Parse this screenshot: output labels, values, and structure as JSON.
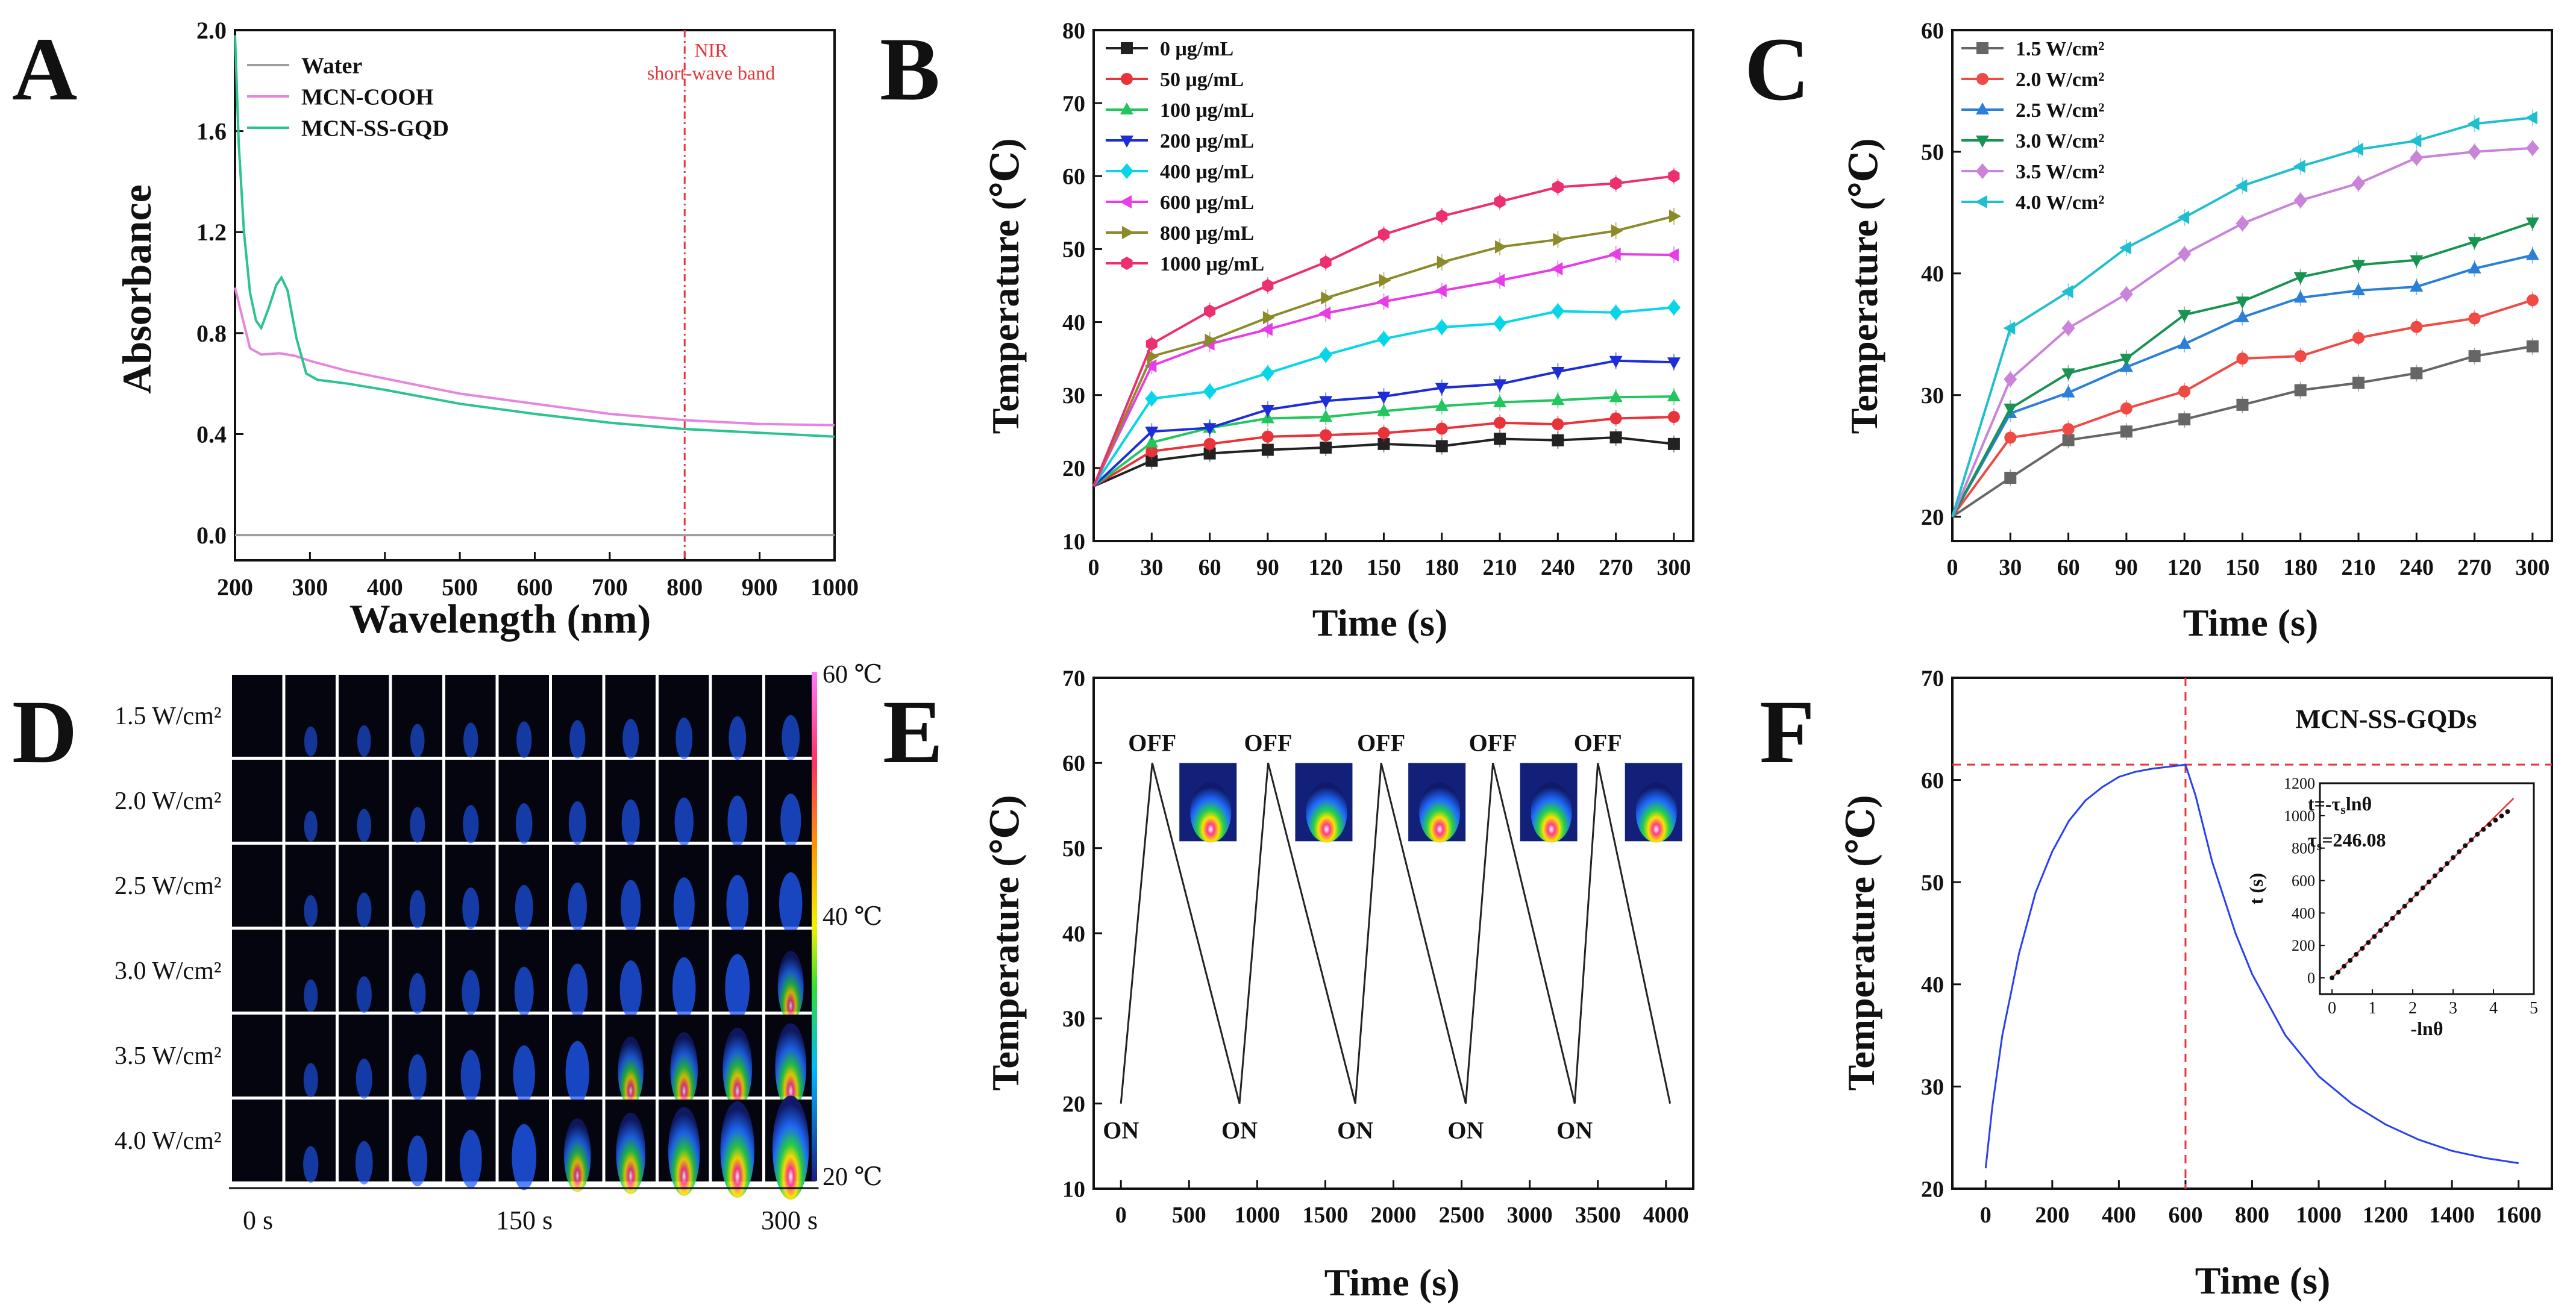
{
  "chart_data": [
    {
      "panel": "A",
      "type": "line",
      "xlabel": "Wavelength (nm)",
      "ylabel": "Absorbance",
      "xlim": [
        200,
        1000
      ],
      "ylim": [
        -0.1,
        2.0
      ],
      "xticks": [
        200,
        300,
        400,
        500,
        600,
        700,
        800,
        900,
        1000
      ],
      "yticks": [
        "0.0",
        "0.4",
        "0.8",
        "1.2",
        "1.6",
        "2.0"
      ],
      "legend_position": "top-left",
      "annotation": {
        "x": 800,
        "line1": "NIR",
        "line2": "short-wave band",
        "color": "#e8333a"
      },
      "series": [
        {
          "name": "Water",
          "color": "#9e9e9e",
          "points": [
            [
              200,
              0.0
            ],
            [
              1000,
              0.0
            ]
          ]
        },
        {
          "name": "MCN-COOH",
          "color": "#e685e0",
          "points": [
            [
              200,
              0.98
            ],
            [
              210,
              0.86
            ],
            [
              220,
              0.74
            ],
            [
              235,
              0.715
            ],
            [
              260,
              0.72
            ],
            [
              280,
              0.71
            ],
            [
              300,
              0.69
            ],
            [
              350,
              0.65
            ],
            [
              400,
              0.62
            ],
            [
              500,
              0.56
            ],
            [
              600,
              0.52
            ],
            [
              700,
              0.48
            ],
            [
              800,
              0.455
            ],
            [
              900,
              0.44
            ],
            [
              1000,
              0.435
            ]
          ]
        },
        {
          "name": "MCN-SS-GQD",
          "color": "#2bc38f",
          "points": [
            [
              200,
              1.98
            ],
            [
              205,
              1.55
            ],
            [
              212,
              1.2
            ],
            [
              220,
              0.96
            ],
            [
              228,
              0.85
            ],
            [
              235,
              0.82
            ],
            [
              245,
              0.9
            ],
            [
              255,
              0.99
            ],
            [
              262,
              1.02
            ],
            [
              270,
              0.97
            ],
            [
              282,
              0.78
            ],
            [
              295,
              0.64
            ],
            [
              310,
              0.615
            ],
            [
              350,
              0.6
            ],
            [
              400,
              0.575
            ],
            [
              500,
              0.52
            ],
            [
              600,
              0.48
            ],
            [
              700,
              0.445
            ],
            [
              800,
              0.42
            ],
            [
              900,
              0.405
            ],
            [
              1000,
              0.39
            ]
          ]
        }
      ]
    },
    {
      "panel": "B",
      "type": "line",
      "xlabel": "Time (s)",
      "ylabel": "Temperature (℃)",
      "xlim": [
        0,
        310
      ],
      "ylim": [
        10,
        80
      ],
      "xticks": [
        0,
        30,
        60,
        90,
        120,
        150,
        180,
        210,
        240,
        270,
        300
      ],
      "yticks": [
        10,
        20,
        30,
        40,
        50,
        60,
        70,
        80
      ],
      "legend_position": "top-left",
      "x": [
        0,
        30,
        60,
        90,
        120,
        150,
        180,
        210,
        240,
        270,
        300
      ],
      "series": [
        {
          "name": "0 μg/mL",
          "color": "#222222",
          "marker": "square",
          "values": [
            17.5,
            21.0,
            22.0,
            22.5,
            22.8,
            23.3,
            23.0,
            24.0,
            23.8,
            24.2,
            23.3
          ]
        },
        {
          "name": "50 μg/mL",
          "color": "#e8333a",
          "marker": "circle",
          "values": [
            17.5,
            22.3,
            23.3,
            24.3,
            24.5,
            24.8,
            25.4,
            26.2,
            26.0,
            26.8,
            27.0
          ]
        },
        {
          "name": "100 μg/mL",
          "color": "#22c55e",
          "marker": "triangle-up",
          "values": [
            17.5,
            23.5,
            25.5,
            26.8,
            27.0,
            27.8,
            28.5,
            29.0,
            29.3,
            29.7,
            29.8
          ]
        },
        {
          "name": "200 μg/mL",
          "color": "#1d2ed8",
          "marker": "triangle-down",
          "values": [
            17.5,
            25.0,
            25.5,
            28.0,
            29.2,
            29.8,
            31.0,
            31.5,
            33.2,
            34.7,
            34.5
          ]
        },
        {
          "name": "400 μg/mL",
          "color": "#06d6e8",
          "marker": "diamond",
          "values": [
            17.5,
            29.5,
            30.5,
            33.0,
            35.5,
            37.7,
            39.3,
            39.8,
            41.5,
            41.3,
            42.0
          ]
        },
        {
          "name": "600 μg/mL",
          "color": "#e63de6",
          "marker": "triangle-left",
          "values": [
            17.5,
            34.0,
            37.0,
            39.0,
            41.2,
            42.8,
            44.3,
            45.7,
            47.3,
            49.3,
            49.2
          ]
        },
        {
          "name": "800 μg/mL",
          "color": "#8c8a2a",
          "marker": "triangle-right",
          "values": [
            17.5,
            35.3,
            37.5,
            40.6,
            43.3,
            45.7,
            48.2,
            50.3,
            51.3,
            52.5,
            54.5
          ]
        },
        {
          "name": "1000 μg/mL",
          "color": "#ec2f6e",
          "marker": "hexagon",
          "values": [
            17.5,
            37.0,
            41.5,
            45.0,
            48.2,
            52.0,
            54.5,
            56.5,
            58.5,
            59.0,
            60.0
          ]
        }
      ]
    },
    {
      "panel": "C",
      "type": "line",
      "xlabel": "Time (s)",
      "ylabel": "Temperature (℃)",
      "xlim": [
        0,
        310
      ],
      "ylim": [
        18,
        60
      ],
      "xticks": [
        0,
        30,
        60,
        90,
        120,
        150,
        180,
        210,
        240,
        270,
        300
      ],
      "yticks": [
        20,
        30,
        40,
        50,
        60
      ],
      "legend_position": "top-left",
      "x": [
        0,
        30,
        60,
        90,
        120,
        150,
        180,
        210,
        240,
        270,
        300
      ],
      "series": [
        {
          "name": "1.5 W/cm²",
          "color": "#666666",
          "marker": "square",
          "values": [
            20.0,
            23.2,
            26.3,
            27.0,
            28.0,
            29.2,
            30.4,
            31.0,
            31.8,
            33.2,
            34.0
          ]
        },
        {
          "name": "2.0 W/cm²",
          "color": "#ef4a44",
          "marker": "circle",
          "values": [
            20.0,
            26.5,
            27.2,
            28.9,
            30.3,
            33.0,
            33.2,
            34.7,
            35.6,
            36.3,
            37.8
          ]
        },
        {
          "name": "2.5 W/cm²",
          "color": "#2a7fd6",
          "marker": "triangle-up",
          "values": [
            20.0,
            28.5,
            30.2,
            32.3,
            34.2,
            36.4,
            38.0,
            38.6,
            38.9,
            40.4,
            41.5
          ]
        },
        {
          "name": "3.0 W/cm²",
          "color": "#199352",
          "marker": "triangle-down",
          "values": [
            20.0,
            28.9,
            31.8,
            33.0,
            36.6,
            37.7,
            39.7,
            40.7,
            41.1,
            42.6,
            44.2
          ]
        },
        {
          "name": "3.5 W/cm²",
          "color": "#c983d8",
          "marker": "diamond",
          "values": [
            20.0,
            31.3,
            35.5,
            38.3,
            41.6,
            44.1,
            46.0,
            47.4,
            49.5,
            50.0,
            50.3
          ]
        },
        {
          "name": "4.0 W/cm²",
          "color": "#20bfcf",
          "marker": "triangle-left",
          "values": [
            20.0,
            35.5,
            38.5,
            42.1,
            44.6,
            47.2,
            48.8,
            50.2,
            50.9,
            52.3,
            52.8
          ]
        }
      ]
    },
    {
      "panel": "D",
      "type": "heatmap",
      "rows": [
        "1.5 W/cm²",
        "2.0 W/cm²",
        "2.5 W/cm²",
        "3.0 W/cm²",
        "3.5 W/cm²",
        "4.0 W/cm²"
      ],
      "time_labels": [
        "0 s",
        "150 s",
        "300 s"
      ],
      "colorbar_labels": {
        "max": "60 ℃",
        "mid": "40 ℃",
        "min": "20 ℃"
      },
      "columns": 11,
      "relative_intensity": [
        [
          0,
          0.04,
          0.06,
          0.08,
          0.1,
          0.12,
          0.14,
          0.16,
          0.18,
          0.2,
          0.22
        ],
        [
          0,
          0.05,
          0.08,
          0.11,
          0.14,
          0.17,
          0.2,
          0.23,
          0.26,
          0.29,
          0.32
        ],
        [
          0,
          0.06,
          0.1,
          0.14,
          0.18,
          0.22,
          0.26,
          0.3,
          0.34,
          0.38,
          0.42
        ],
        [
          0,
          0.07,
          0.12,
          0.17,
          0.22,
          0.27,
          0.32,
          0.37,
          0.42,
          0.47,
          0.52
        ],
        [
          0,
          0.09,
          0.16,
          0.23,
          0.3,
          0.37,
          0.44,
          0.51,
          0.58,
          0.65,
          0.72
        ],
        [
          0,
          0.12,
          0.2,
          0.29,
          0.38,
          0.47,
          0.56,
          0.65,
          0.74,
          0.83,
          0.92
        ]
      ]
    },
    {
      "panel": "E",
      "type": "line",
      "xlabel": "Time (s)",
      "ylabel": "Temperature (℃)",
      "xlim": [
        -200,
        4200
      ],
      "ylim": [
        10,
        70
      ],
      "xticks": [
        0,
        500,
        1000,
        1500,
        2000,
        2500,
        3000,
        3500,
        4000
      ],
      "yticks": [
        10,
        20,
        30,
        40,
        50,
        60,
        70
      ],
      "on_label": "ON",
      "off_label": "OFF",
      "series": [
        {
          "name": "",
          "color": "#222222",
          "points": [
            [
              0,
              20
            ],
            [
              230,
              60
            ],
            [
              870,
              20
            ],
            [
              1080,
              60
            ],
            [
              1720,
              20
            ],
            [
              1910,
              60
            ],
            [
              2530,
              20
            ],
            [
              2730,
              60
            ],
            [
              3330,
              20
            ],
            [
              3500,
              60
            ],
            [
              4030,
              20
            ]
          ]
        }
      ],
      "on_points": [
        0,
        870,
        1720,
        2530,
        3330
      ],
      "off_points": [
        230,
        1080,
        1910,
        2730,
        3500
      ]
    },
    {
      "panel": "F",
      "type": "line",
      "title": "MCN-SS-GQDs",
      "xlabel": "Time (s)",
      "ylabel": "Temperature (℃)",
      "xlim": [
        -100,
        1700
      ],
      "ylim": [
        20,
        70
      ],
      "xticks": [
        0,
        200,
        400,
        600,
        800,
        1000,
        1200,
        1400,
        1600
      ],
      "yticks": [
        20,
        30,
        40,
        50,
        60,
        70
      ],
      "crosshair": {
        "x": 600,
        "y": 61.5,
        "color": "#e8333a"
      },
      "series": [
        {
          "name": "",
          "color": "#2a3ff0",
          "points": [
            [
              0,
              22
            ],
            [
              20,
              28
            ],
            [
              50,
              35
            ],
            [
              100,
              43
            ],
            [
              150,
              49
            ],
            [
              200,
              53
            ],
            [
              250,
              56
            ],
            [
              300,
              58
            ],
            [
              350,
              59.3
            ],
            [
              400,
              60.3
            ],
            [
              450,
              60.8
            ],
            [
              500,
              61.1
            ],
            [
              550,
              61.3
            ],
            [
              600,
              61.5
            ],
            [
              630,
              58.5
            ],
            [
              680,
              52
            ],
            [
              750,
              45
            ],
            [
              800,
              41
            ],
            [
              900,
              35
            ],
            [
              1000,
              31
            ],
            [
              1100,
              28.3
            ],
            [
              1200,
              26.3
            ],
            [
              1300,
              24.8
            ],
            [
              1400,
              23.7
            ],
            [
              1500,
              23.0
            ],
            [
              1600,
              22.5
            ]
          ]
        }
      ],
      "inset": {
        "type": "scatter",
        "xlabel": "-lnθ",
        "ylabel": "t (s)",
        "xlim": [
          -0.3,
          5
        ],
        "ylim": [
          -100,
          1200
        ],
        "xticks": [
          0,
          1,
          2,
          3,
          4,
          5
        ],
        "yticks": [
          0,
          200,
          400,
          600,
          800,
          1000,
          1200
        ],
        "equation": "t=-τslnθ",
        "tau_label": "τs=246.08",
        "fit": {
          "slope": 246.08,
          "x_range": [
            0,
            4.5
          ],
          "color": "#e8333a"
        },
        "points": [
          [
            0.0,
            0
          ],
          [
            0.15,
            35
          ],
          [
            0.3,
            72
          ],
          [
            0.45,
            108
          ],
          [
            0.6,
            145
          ],
          [
            0.75,
            182
          ],
          [
            0.9,
            218
          ],
          [
            1.05,
            255
          ],
          [
            1.2,
            292
          ],
          [
            1.35,
            330
          ],
          [
            1.5,
            368
          ],
          [
            1.65,
            405
          ],
          [
            1.8,
            442
          ],
          [
            1.95,
            480
          ],
          [
            2.1,
            518
          ],
          [
            2.25,
            555
          ],
          [
            2.4,
            592
          ],
          [
            2.55,
            630
          ],
          [
            2.7,
            668
          ],
          [
            2.85,
            705
          ],
          [
            3.0,
            742
          ],
          [
            3.15,
            778
          ],
          [
            3.3,
            815
          ],
          [
            3.45,
            850
          ],
          [
            3.6,
            885
          ],
          [
            3.75,
            915
          ],
          [
            3.9,
            945
          ],
          [
            4.05,
            972
          ],
          [
            4.2,
            998
          ],
          [
            4.35,
            1025
          ]
        ]
      }
    }
  ],
  "panel_letters": [
    "A",
    "B",
    "C",
    "D",
    "E",
    "F"
  ]
}
